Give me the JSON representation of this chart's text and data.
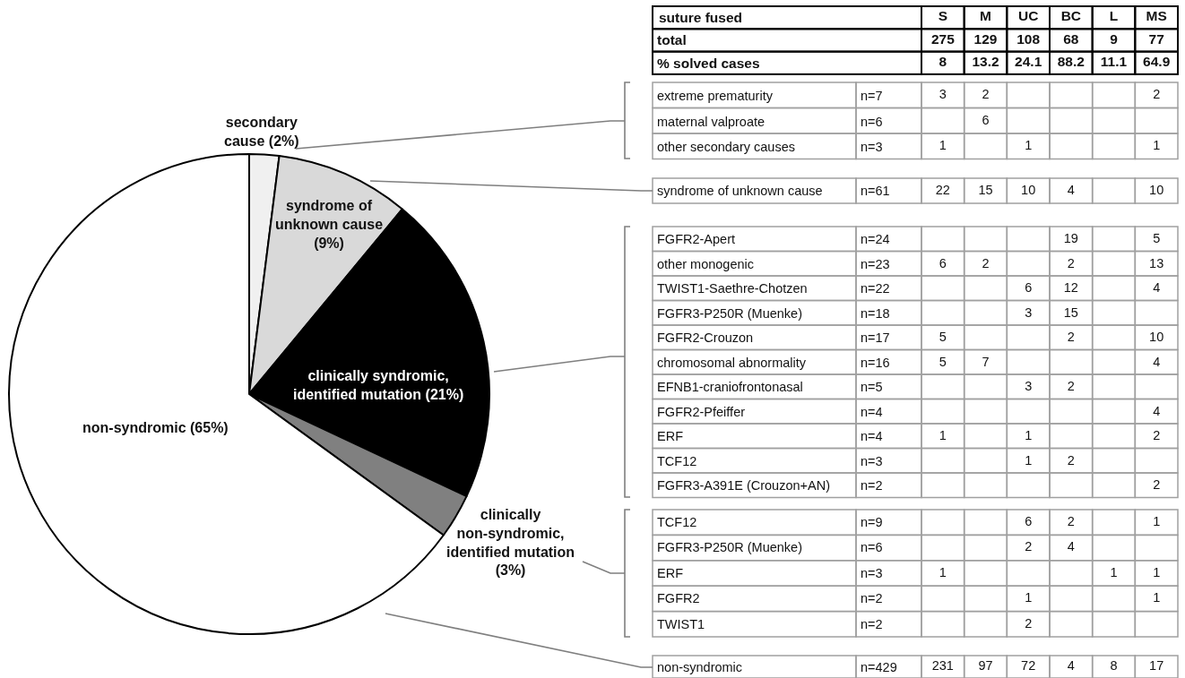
{
  "chart_data": [
    {
      "type": "pie",
      "categories": [
        "secondary cause (2%)",
        "syndrome of unknown cause (9%)",
        "clinically syndromic, identified mutation (21%)",
        "clinically non-syndromic, identified mutation (3%)",
        "non-syndromic (65%)"
      ],
      "values": [
        2,
        9,
        21,
        3,
        65
      ],
      "colors": [
        "#f0f0f0",
        "#d9d9d9",
        "#000000",
        "#808080",
        "#ffffff"
      ]
    },
    {
      "type": "other",
      "xlabel": "suture fused",
      "categories": [
        "S",
        "M",
        "UC",
        "BC",
        "L",
        "MS"
      ],
      "data_labels": true,
      "series": [
        {
          "name": "total",
          "values": [
            275,
            129,
            108,
            68,
            9,
            77
          ]
        },
        {
          "name": "% solved cases",
          "values": [
            8,
            13.2,
            24.1,
            88.2,
            11.1,
            64.9
          ]
        }
      ]
    },
    {
      "type": "other",
      "categories": [
        null,
        null,
        null,
        null,
        null,
        null
      ],
      "data_labels": true,
      "annotations": [
        "n=7"
      ],
      "series": [
        {
          "name": "extreme prematurity",
          "values": [
            3,
            2,
            null,
            null,
            null,
            2
          ]
        }
      ]
    },
    {
      "type": "other",
      "categories": [
        null,
        null,
        null,
        null,
        null,
        null
      ],
      "data_labels": true,
      "annotations": [
        "n=6"
      ],
      "series": [
        {
          "name": "maternal valproate",
          "values": [
            null,
            6,
            null,
            null,
            null,
            null
          ]
        }
      ]
    },
    {
      "type": "other",
      "categories": [
        null,
        null,
        null,
        null,
        null,
        null
      ],
      "data_labels": true,
      "annotations": [
        "n=3"
      ],
      "series": [
        {
          "name": "other secondary causes",
          "values": [
            1,
            null,
            1,
            null,
            null,
            1
          ]
        }
      ]
    },
    {
      "type": "other",
      "categories": [
        null,
        null,
        null,
        null,
        null,
        null
      ],
      "data_labels": true,
      "annotations": [
        "n=61"
      ],
      "series": [
        {
          "name": "syndrome of unknown cause",
          "values": [
            22,
            15,
            10,
            4,
            null,
            10
          ]
        }
      ]
    },
    {
      "type": "other",
      "categories": [
        null,
        null,
        null,
        null,
        null,
        null
      ],
      "data_labels": true,
      "annotations": [
        "n=24"
      ],
      "series": [
        {
          "name": "FGFR2-Apert",
          "values": [
            null,
            null,
            null,
            19,
            null,
            5
          ]
        }
      ]
    },
    {
      "type": "other",
      "categories": [
        null,
        null,
        null,
        null,
        null,
        null
      ],
      "data_labels": true,
      "annotations": [
        "n=23"
      ],
      "series": [
        {
          "name": "other monogenic",
          "values": [
            6,
            2,
            null,
            2,
            null,
            13
          ]
        }
      ]
    },
    {
      "type": "other",
      "categories": [
        null,
        null,
        null,
        null,
        null,
        null
      ],
      "data_labels": true,
      "annotations": [
        "n=22"
      ],
      "series": [
        {
          "name": "TWIST1-Saethre-Chotzen",
          "values": [
            null,
            null,
            6,
            12,
            null,
            4
          ]
        }
      ]
    },
    {
      "type": "other",
      "categories": [
        null,
        null,
        null,
        null,
        null,
        null
      ],
      "data_labels": true,
      "annotations": [
        "n=18"
      ],
      "series": [
        {
          "name": "FGFR3-P250R (Muenke)",
          "values": [
            null,
            null,
            3,
            15,
            null,
            null
          ]
        }
      ]
    },
    {
      "type": "other",
      "categories": [
        null,
        null,
        null,
        null,
        null,
        null
      ],
      "data_labels": true,
      "annotations": [
        "n=17"
      ],
      "series": [
        {
          "name": "FGFR2-Crouzon",
          "values": [
            5,
            null,
            null,
            2,
            null,
            10
          ]
        }
      ]
    },
    {
      "type": "other",
      "categories": [
        null,
        null,
        null,
        null,
        null,
        null
      ],
      "data_labels": true,
      "annotations": [
        "n=16"
      ],
      "series": [
        {
          "name": "chromosomal abnormality",
          "values": [
            5,
            7,
            null,
            null,
            null,
            4
          ]
        }
      ]
    },
    {
      "type": "other",
      "categories": [
        null,
        null,
        null,
        null,
        null,
        null
      ],
      "data_labels": true,
      "annotations": [
        "n=5"
      ],
      "series": [
        {
          "name": "EFNB1-craniofrontonasal",
          "values": [
            null,
            null,
            3,
            2,
            null,
            null
          ]
        }
      ]
    },
    {
      "type": "other",
      "categories": [
        null,
        null,
        null,
        null,
        null,
        null
      ],
      "data_labels": true,
      "annotations": [
        "n=4"
      ],
      "series": [
        {
          "name": "FGFR2-Pfeiffer",
          "values": [
            null,
            null,
            null,
            null,
            null,
            4
          ]
        }
      ]
    },
    {
      "type": "other",
      "categories": [
        null,
        null,
        null,
        null,
        null,
        null
      ],
      "data_labels": true,
      "annotations": [
        "n=4"
      ],
      "series": [
        {
          "name": "ERF",
          "values": [
            1,
            null,
            1,
            null,
            null,
            2
          ]
        }
      ]
    },
    {
      "type": "other",
      "categories": [
        null,
        null,
        null,
        null,
        null,
        null
      ],
      "data_labels": true,
      "annotations": [
        "n=3"
      ],
      "series": [
        {
          "name": "TCF12",
          "values": [
            null,
            null,
            1,
            2,
            null,
            null
          ]
        }
      ]
    },
    {
      "type": "other",
      "categories": [
        null,
        null,
        null,
        null,
        null,
        null
      ],
      "data_labels": true,
      "annotations": [
        "n=2"
      ],
      "series": [
        {
          "name": "FGFR3-A391E (Crouzon+AN)",
          "values": [
            null,
            null,
            null,
            null,
            null,
            2
          ]
        }
      ]
    },
    {
      "type": "other",
      "categories": [
        null,
        null,
        null,
        null,
        null,
        null
      ],
      "data_labels": true,
      "annotations": [
        "n=9"
      ],
      "series": [
        {
          "name": "TCF12",
          "values": [
            null,
            null,
            6,
            2,
            null,
            1
          ]
        }
      ]
    },
    {
      "type": "other",
      "categories": [
        null,
        null,
        null,
        null,
        null,
        null
      ],
      "data_labels": true,
      "annotations": [
        "n=6"
      ],
      "series": [
        {
          "name": "FGFR3-P250R (Muenke)",
          "values": [
            null,
            null,
            2,
            4,
            null,
            null
          ]
        }
      ]
    },
    {
      "type": "other",
      "categories": [
        null,
        null,
        null,
        null,
        null,
        null
      ],
      "data_labels": true,
      "annotations": [
        "n=3"
      ],
      "series": [
        {
          "name": "ERF",
          "values": [
            1,
            null,
            null,
            null,
            1,
            1
          ]
        }
      ]
    },
    {
      "type": "other",
      "categories": [
        null,
        null,
        null,
        null,
        null,
        null
      ],
      "data_labels": true,
      "annotations": [
        "n=2"
      ],
      "series": [
        {
          "name": "FGFR2",
          "values": [
            null,
            null,
            1,
            null,
            null,
            1
          ]
        }
      ]
    },
    {
      "type": "other",
      "categories": [
        null,
        null,
        null,
        null,
        null,
        null
      ],
      "data_labels": true,
      "annotations": [
        "n=2"
      ],
      "series": [
        {
          "name": "TWIST1",
          "values": [
            null,
            null,
            2,
            null,
            null,
            null
          ]
        }
      ]
    },
    {
      "type": "other",
      "categories": [
        null,
        null,
        null,
        null,
        null,
        null
      ],
      "data_labels": true,
      "annotations": [
        "n=429"
      ],
      "series": [
        {
          "name": "non-syndromic",
          "values": [
            231,
            97,
            72,
            4,
            8,
            17
          ]
        }
      ]
    }
  ]
}
